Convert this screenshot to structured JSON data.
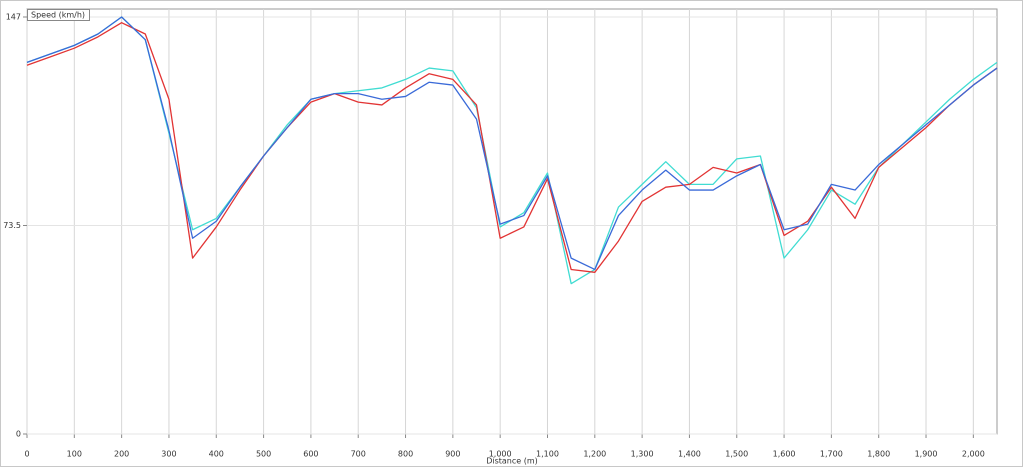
{
  "chart_data": {
    "type": "line",
    "title": "Speed (km/h)",
    "x_label": "Distance (m)",
    "x": [
      0,
      50,
      100,
      150,
      200,
      250,
      300,
      350,
      400,
      450,
      500,
      550,
      600,
      650,
      700,
      750,
      800,
      850,
      900,
      950,
      1000,
      1050,
      1100,
      1150,
      1200,
      1250,
      1300,
      1350,
      1400,
      1450,
      1500,
      1550,
      1600,
      1650,
      1700,
      1750,
      1800,
      1850,
      1900,
      1950,
      2000,
      2050
    ],
    "series": [
      {
        "color": "#40dcd2",
        "values": [
          131,
          134,
          137,
          141,
          147,
          139,
          106,
          72,
          76,
          87,
          98,
          109,
          118,
          120,
          121,
          122,
          125,
          129,
          128,
          115,
          73,
          78,
          92,
          53,
          58,
          80,
          88,
          96,
          88,
          88,
          97,
          98,
          62,
          72,
          86,
          81,
          94,
          102,
          110,
          118,
          125,
          131
        ]
      },
      {
        "color": "#e23434",
        "values": [
          130,
          133,
          136,
          140,
          145,
          141,
          118,
          62,
          73,
          86,
          98,
          108,
          117,
          120,
          117,
          116,
          122,
          127,
          125,
          116,
          69,
          73,
          90,
          58,
          57,
          68,
          82,
          87,
          88,
          94,
          92,
          95,
          70,
          75,
          87,
          76,
          94,
          101,
          108,
          116,
          123,
          129
        ]
      },
      {
        "color": "#3a6ad8",
        "values": [
          131,
          134,
          137,
          141,
          147,
          139,
          107,
          69,
          75,
          87,
          98,
          108,
          118,
          120,
          120,
          118,
          119,
          124,
          123,
          111,
          74,
          77,
          91,
          62,
          58,
          77,
          86,
          93,
          86,
          86,
          91,
          95,
          72,
          74,
          88,
          86,
          95,
          102,
          109,
          116,
          123,
          129
        ]
      }
    ],
    "xlim": [
      0,
      2050
    ],
    "ylim": [
      0,
      147
    ],
    "xticks": [
      0,
      100,
      200,
      300,
      400,
      500,
      600,
      700,
      800,
      900,
      {
        "value": 1000,
        "label": "1,000"
      },
      {
        "value": 1100,
        "label": "1,100"
      },
      {
        "value": 1200,
        "label": "1,200"
      },
      {
        "value": 1300,
        "label": "1,300"
      },
      {
        "value": 1400,
        "label": "1,400"
      },
      {
        "value": 1500,
        "label": "1,500"
      },
      {
        "value": 1600,
        "label": "1,600"
      },
      {
        "value": 1700,
        "label": "1,700"
      },
      {
        "value": 1800,
        "label": "1,800"
      },
      {
        "value": 1900,
        "label": "1,900"
      },
      {
        "value": 2000,
        "label": "2,000"
      }
    ],
    "yticks": [
      0,
      73.5,
      147
    ],
    "grid": true
  }
}
